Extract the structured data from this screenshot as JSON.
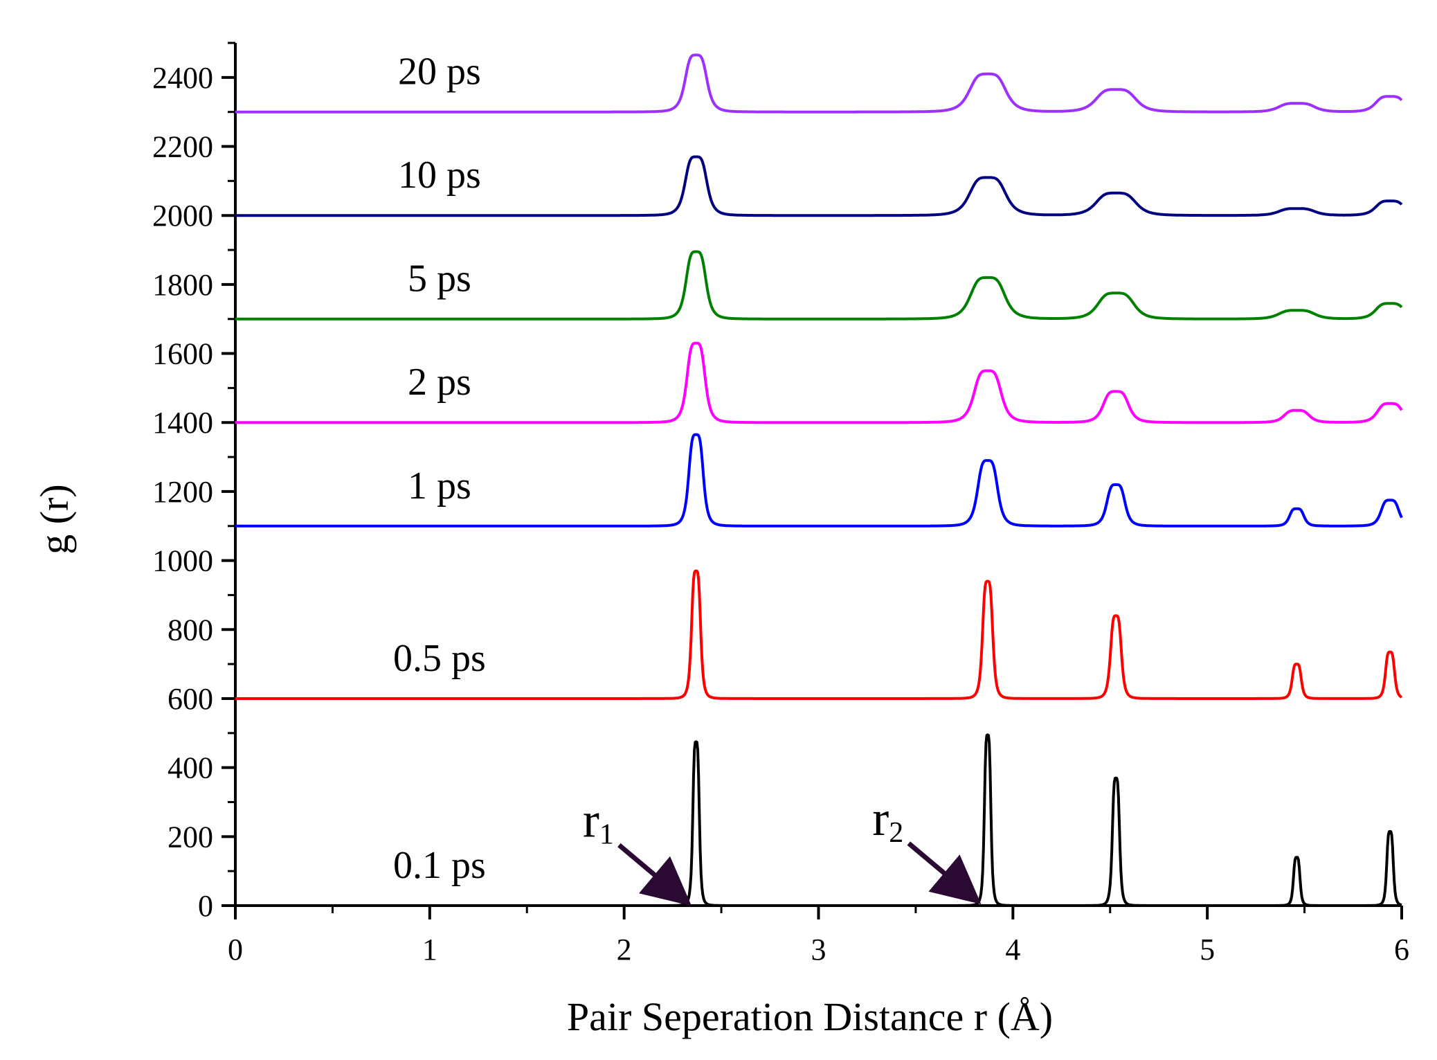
{
  "chart_data": {
    "type": "line",
    "title": "",
    "xlabel": "Pair Seperation Distance r (Å)",
    "ylabel": "g (r)",
    "xlim": [
      0,
      6
    ],
    "ylim": [
      0,
      2400
    ],
    "grid": false,
    "x_ticks": [
      0,
      1,
      2,
      3,
      4,
      5,
      6
    ],
    "x_tick_labels": [
      "0",
      "1",
      "2",
      "3",
      "4",
      "5",
      "6"
    ],
    "y_ticks": [
      0,
      200,
      400,
      600,
      800,
      1000,
      1200,
      1400,
      1600,
      1800,
      2000,
      2200,
      2400
    ],
    "y_tick_labels": [
      "0",
      "200",
      "400",
      "600",
      "800",
      "1000",
      "1200",
      "1400",
      "1600",
      "1800",
      "2000",
      "2200",
      "2400"
    ],
    "peak_positions": [
      2.37,
      3.87,
      4.53,
      5.46,
      5.94
    ],
    "series": [
      {
        "name": "0.1 ps",
        "color": "#000000",
        "baseline": 0,
        "peak_heights": [
          475,
          495,
          370,
          140,
          215
        ],
        "peak_widths": [
          0.018,
          0.018,
          0.02,
          0.018,
          0.018
        ]
      },
      {
        "name": "0.5 ps",
        "color": "#ff0000",
        "baseline": 600,
        "peak_heights": [
          370,
          340,
          240,
          100,
          135
        ],
        "peak_widths": [
          0.025,
          0.028,
          0.03,
          0.025,
          0.025
        ]
      },
      {
        "name": "1 ps",
        "color": "#0000ff",
        "baseline": 1100,
        "peak_heights": [
          265,
          190,
          120,
          50,
          75
        ],
        "peak_widths": [
          0.04,
          0.055,
          0.05,
          0.04,
          0.05
        ]
      },
      {
        "name": "2 ps",
        "color": "#ff00ff",
        "baseline": 1400,
        "peak_heights": [
          230,
          150,
          90,
          35,
          55
        ],
        "peak_widths": [
          0.05,
          0.075,
          0.07,
          0.07,
          0.07
        ]
      },
      {
        "name": "5 ps",
        "color": "#008000",
        "baseline": 1700,
        "peak_heights": [
          195,
          120,
          75,
          25,
          45
        ],
        "peak_widths": [
          0.055,
          0.095,
          0.1,
          0.1,
          0.08
        ]
      },
      {
        "name": "10 ps",
        "color": "#000080",
        "baseline": 2000,
        "peak_heights": [
          170,
          110,
          65,
          20,
          42
        ],
        "peak_widths": [
          0.06,
          0.1,
          0.11,
          0.1,
          0.08
        ]
      },
      {
        "name": "20 ps",
        "color": "#9b30ff",
        "baseline": 2300,
        "peak_heights": [
          165,
          110,
          65,
          25,
          45
        ],
        "peak_widths": [
          0.06,
          0.1,
          0.11,
          0.1,
          0.08
        ]
      }
    ],
    "annotations": [
      {
        "label": "r",
        "subscript": "1",
        "x": 2.33,
        "y": 5,
        "color": "#2a0a33"
      },
      {
        "label": "r",
        "subscript": "2",
        "x": 3.82,
        "y": 10,
        "color": "#2a0a33"
      }
    ]
  }
}
